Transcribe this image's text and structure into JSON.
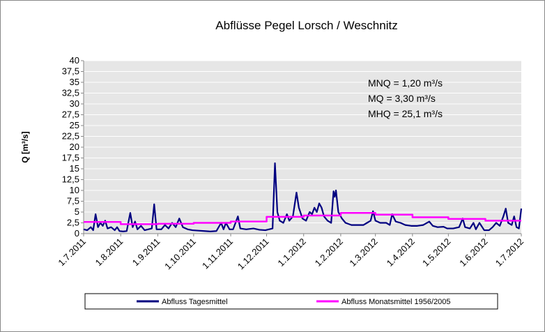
{
  "chart_data": {
    "type": "line",
    "title": "Abflüsse Pegel Lorsch / Weschnitz",
    "ylabel": "Q [m³/s]",
    "annotations": [
      "MNQ = 1,20 m³/s",
      "MQ = 3,30 m³/s",
      "MHQ = 25,1 m³/s"
    ],
    "xlim": [
      "1.7.2011",
      "1.7.2012"
    ],
    "xticks": [
      "1.7.2011",
      "1.8.2011",
      "1.9.2011",
      "1.10.2011",
      "1.11.2011",
      "1.12.2011",
      "1.1.2012",
      "1.2.2012",
      "1.3.2012",
      "1.4.2012",
      "1.5.2012",
      "1.6.2012",
      "1.7.2012"
    ],
    "ylim": [
      0,
      40
    ],
    "yticks": [
      0,
      {
        "value": 2.5,
        "label": "2,5"
      },
      5,
      {
        "value": 7.5,
        "label": "7,5"
      },
      10,
      {
        "value": 12.5,
        "label": "12,5"
      },
      15,
      {
        "value": 17.5,
        "label": "17,5"
      },
      20,
      {
        "value": 22.5,
        "label": "22,5"
      },
      25,
      {
        "value": 27.5,
        "label": "27,5"
      },
      30,
      {
        "value": 32.5,
        "label": "32,5"
      },
      35,
      {
        "value": 37.5,
        "label": "37,5"
      },
      40
    ],
    "grid": true,
    "series": [
      {
        "name": "Abfluss Tagesmittel",
        "color": "#000080",
        "step": false,
        "x": [
          "1.7.2011",
          "4.7.2011",
          "7.7.2011",
          "9.7.2011",
          "11.7.2011",
          "13.7.2011",
          "15.7.2011",
          "17.7.2011",
          "19.7.2011",
          "21.7.2011",
          "24.7.2011",
          "27.7.2011",
          "29.7.2011",
          "31.7.2011",
          "3.8.2011",
          "6.8.2011",
          "9.8.2011",
          "11.8.2011",
          "13.8.2011",
          "15.8.2011",
          "18.8.2011",
          "21.8.2011",
          "24.8.2011",
          "27.8.2011",
          "29.8.2011",
          "31.8.2011",
          "4.9.2011",
          "7.9.2011",
          "10.9.2011",
          "13.9.2011",
          "16.9.2011",
          "19.9.2011",
          "22.9.2011",
          "26.9.2011",
          "30.9.2011",
          "5.10.2011",
          "10.10.2011",
          "15.10.2011",
          "20.10.2011",
          "24.10.2011",
          "26.10.2011",
          "28.10.2011",
          "31.10.2011",
          "3.11.2011",
          "7.11.2011",
          "9.11.2011",
          "14.11.2011",
          "20.11.2011",
          "25.11.2011",
          "30.11.2011",
          "3.12.2011",
          "6.12.2011",
          "8.12.2011",
          "10.12.2011",
          "12.12.2011",
          "15.12.2011",
          "18.12.2011",
          "20.12.2011",
          "23.12.2011",
          "26.12.2011",
          "28.12.2011",
          "31.12.2011",
          "3.1.2012",
          "6.1.2012",
          "8.1.2012",
          "10.1.2012",
          "12.1.2012",
          "14.1.2012",
          "16.1.2012",
          "18.1.2012",
          "21.1.2012",
          "24.1.2012",
          "26.1.2012",
          "27.1.2012",
          "28.1.2012",
          "30.1.2012",
          "2.2.2012",
          "5.2.2012",
          "10.2.2012",
          "15.2.2012",
          "20.2.2012",
          "23.2.2012",
          "26.2.2012",
          "28.2.2012",
          "1.3.2012",
          "5.3.2012",
          "10.3.2012",
          "13.3.2012",
          "15.3.2012",
          "18.3.2012",
          "22.3.2012",
          "26.3.2012",
          "31.3.2012",
          "5.4.2012",
          "10.4.2012",
          "15.4.2012",
          "18.4.2012",
          "22.4.2012",
          "27.4.2012",
          "30.4.2012",
          "5.5.2012",
          "10.5.2012",
          "13.5.2012",
          "15.5.2012",
          "19.5.2012",
          "22.5.2012",
          "24.5.2012",
          "27.5.2012",
          "31.5.2012",
          "4.6.2012",
          "7.6.2012",
          "10.6.2012",
          "13.6.2012",
          "16.6.2012",
          "18.6.2012",
          "20.6.2012",
          "23.6.2012",
          "25.6.2012",
          "27.6.2012",
          "29.6.2012",
          "1.7.2012"
        ],
        "values": [
          1.0,
          0.8,
          1.5,
          0.8,
          4.5,
          1.5,
          2.5,
          1.8,
          3.0,
          1.2,
          1.5,
          0.8,
          1.5,
          0.6,
          0.5,
          0.6,
          4.8,
          1.5,
          2.8,
          1.0,
          1.8,
          0.8,
          1.0,
          1.2,
          6.8,
          1.0,
          1.0,
          2.0,
          1.2,
          2.5,
          1.5,
          3.5,
          1.5,
          1.0,
          0.8,
          0.7,
          0.6,
          0.5,
          0.6,
          2.5,
          1.0,
          2.5,
          1.0,
          1.0,
          4.0,
          1.2,
          1.0,
          1.2,
          0.9,
          0.8,
          1.0,
          1.2,
          16.3,
          5.0,
          3.0,
          2.5,
          4.5,
          3.0,
          4.0,
          9.5,
          6.0,
          3.5,
          3.0,
          5.0,
          4.5,
          6.0,
          5.0,
          7.0,
          6.0,
          4.0,
          3.0,
          2.5,
          9.8,
          8.5,
          10.0,
          5.0,
          3.5,
          2.5,
          2.0,
          2.0,
          2.0,
          2.5,
          3.0,
          5.2,
          3.0,
          2.5,
          2.5,
          2.0,
          4.5,
          2.8,
          2.5,
          2.0,
          1.8,
          1.8,
          2.0,
          2.8,
          1.8,
          1.5,
          1.6,
          1.2,
          1.2,
          1.5,
          3.5,
          1.5,
          1.2,
          2.5,
          1.0,
          2.5,
          0.8,
          0.8,
          1.5,
          2.5,
          1.8,
          4.0,
          5.8,
          2.5,
          2.0,
          4.0,
          1.5,
          1.2,
          5.8
        ]
      },
      {
        "name": "Abfluss Monatsmittel 1956/2005",
        "color": "#ff00ff",
        "step": true,
        "x": [
          "1.7.2011",
          "1.8.2011",
          "1.9.2011",
          "1.10.2011",
          "1.11.2011",
          "1.12.2011",
          "1.1.2012",
          "1.2.2012",
          "1.3.2012",
          "1.4.2012",
          "1.5.2012",
          "1.6.2012"
        ],
        "values": [
          2.7,
          2.2,
          2.3,
          2.5,
          2.8,
          3.9,
          4.2,
          4.8,
          4.4,
          3.8,
          3.4,
          3.0
        ]
      }
    ]
  }
}
